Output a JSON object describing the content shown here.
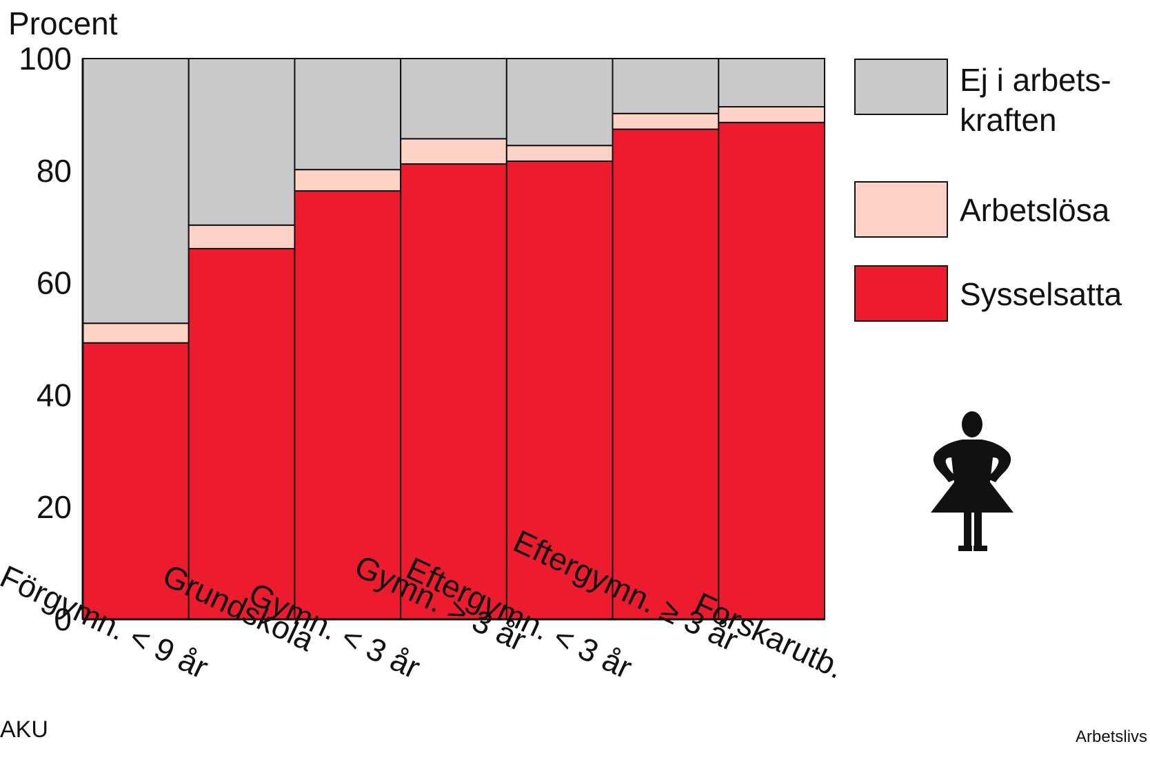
{
  "chart_data": {
    "type": "bar",
    "stacked": true,
    "ylabel": "Procent",
    "ylim": [
      0,
      100
    ],
    "yticks": [
      0,
      20,
      40,
      60,
      80,
      100
    ],
    "categories": [
      "Förgymn. < 9 år",
      "Grundskola",
      "Gymn. < 3 år",
      "Gymn. > 3 år",
      "Eftergymn. < 3 år",
      "Eftergymn. ≥ 3 år",
      "Forskarutb."
    ],
    "series": [
      {
        "name": "Sysselsatta",
        "color": "#ec1c2e",
        "values": [
          49.3,
          66.1,
          76.4,
          81.2,
          81.7,
          87.4,
          88.6
        ]
      },
      {
        "name": "Arbetslösa",
        "color": "#fcd3c6",
        "values": [
          3.5,
          4.2,
          3.8,
          4.5,
          2.8,
          2.8,
          2.8
        ]
      },
      {
        "name": "Ej i arbetskraften",
        "legend_lines": [
          "Ej i arbets-",
          "kraften"
        ],
        "color": "#c9c9c9",
        "values": [
          47.2,
          29.7,
          19.8,
          14.3,
          15.5,
          9.8,
          8.6
        ]
      }
    ],
    "legend_position": "right",
    "grid": false
  },
  "legend_icon": "woman-figure-icon",
  "source_left": "AKU",
  "source_right": "Arbetslivs"
}
